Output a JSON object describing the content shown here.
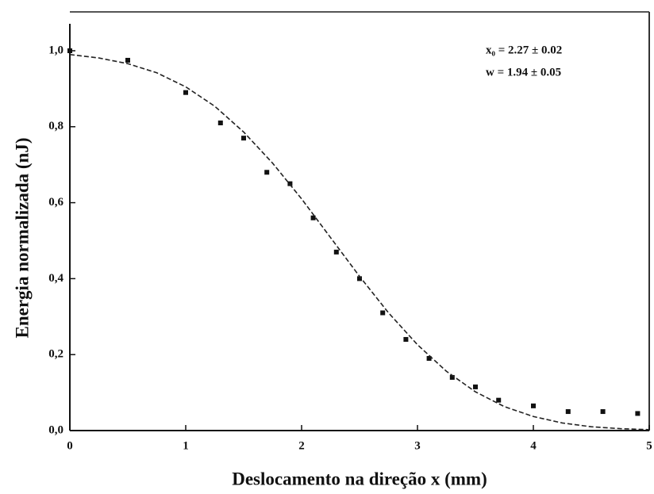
{
  "chart_data": {
    "type": "scatter",
    "xlabel": "Deslocamento na direção x (mm)",
    "ylabel": "Energia normalizada (nJ)",
    "annotations": [
      "x₀ = 2.27 ± 0.02",
      "w = 1.94  ± 0.05"
    ],
    "xlim": [
      0,
      5
    ],
    "ylim": [
      0,
      1.0
    ],
    "xticks": [
      0,
      1,
      2,
      3,
      4,
      5
    ],
    "yticks": [
      {
        "value": 0,
        "label": "0,0"
      },
      {
        "value": 0.2,
        "label": "0,2"
      },
      {
        "value": 0.4,
        "label": "0,4"
      },
      {
        "value": 0.6,
        "label": "0,6"
      },
      {
        "value": 0.8,
        "label": "0,8"
      },
      {
        "value": 1.0,
        "label": "1,0"
      }
    ],
    "series": [
      {
        "kind": "points",
        "color": "#111111",
        "x": [
          0,
          0.5,
          1.0,
          1.3,
          1.5,
          1.7,
          1.9,
          2.1,
          2.3,
          2.5,
          2.7,
          2.9,
          3.1,
          3.3,
          3.5,
          3.7,
          4.0,
          4.3,
          4.6,
          4.9
        ],
        "values": [
          1.0,
          0.975,
          0.89,
          0.81,
          0.77,
          0.68,
          0.65,
          0.56,
          0.47,
          0.4,
          0.31,
          0.24,
          0.19,
          0.14,
          0.115,
          0.08,
          0.065,
          0.05,
          0.05,
          0.045
        ]
      },
      {
        "kind": "fit",
        "color": "#222222",
        "x": [
          0,
          0.25,
          0.5,
          0.75,
          1.0,
          1.25,
          1.5,
          1.75,
          2.0,
          2.25,
          2.5,
          2.75,
          3.0,
          3.25,
          3.5,
          3.75,
          4.0,
          4.25,
          4.5,
          4.75,
          5.0
        ],
        "values": [
          0.99,
          0.981,
          0.966,
          0.942,
          0.905,
          0.854,
          0.786,
          0.704,
          0.61,
          0.508,
          0.406,
          0.31,
          0.226,
          0.156,
          0.102,
          0.063,
          0.037,
          0.02,
          0.01,
          0.005,
          0.0025
        ]
      }
    ]
  }
}
